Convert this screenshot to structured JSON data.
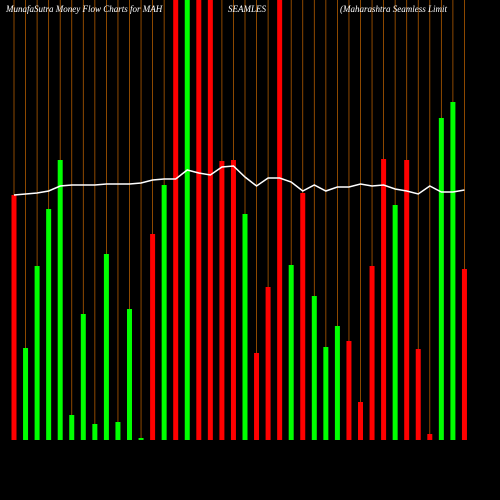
{
  "chart_data": {
    "type": "bar",
    "title_parts": [
      "MunafaSutra  Money Flow  Charts for MAH",
      "SEAMLES",
      "(Maharashtra  Seamless Limit"
    ],
    "categories": [
      null,
      null,
      null,
      null,
      null,
      null,
      null,
      null,
      null,
      null,
      null,
      null,
      null,
      null,
      null,
      null,
      null,
      null,
      null,
      null,
      null,
      null,
      null,
      null,
      null,
      null,
      null,
      null,
      null,
      null,
      null,
      null,
      null,
      null,
      null,
      null,
      null,
      null,
      null,
      null
    ],
    "bar_values": [
      245,
      92,
      174,
      231,
      280,
      25,
      126,
      16,
      186,
      18,
      131,
      2,
      206,
      255,
      440,
      440,
      440,
      440,
      279,
      280,
      226,
      87,
      153,
      440,
      175,
      247,
      144,
      93,
      114,
      99,
      38,
      174,
      281,
      235,
      280,
      91,
      6,
      322,
      338,
      171
    ],
    "bar_colors": [
      "#ff0000",
      "#00ff00",
      "#00ff00",
      "#00ff00",
      "#00ff00",
      "#00ff00",
      "#00ff00",
      "#00ff00",
      "#00ff00",
      "#00ff00",
      "#00ff00",
      "#00ff00",
      "#ff0000",
      "#00ff00",
      "#ff0000",
      "#00ff00",
      "#ff0000",
      "#ff0000",
      "#ff0000",
      "#ff0000",
      "#00ff00",
      "#ff0000",
      "#ff0000",
      "#ff0000",
      "#00ff00",
      "#ff0000",
      "#00ff00",
      "#00ff00",
      "#00ff00",
      "#ff0000",
      "#ff0000",
      "#ff0000",
      "#ff0000",
      "#00ff00",
      "#ff0000",
      "#ff0000",
      "#ff0000",
      "#00ff00",
      "#00ff00",
      "#ff0000"
    ],
    "line_values": [
      245,
      246,
      247,
      249,
      254,
      255,
      255,
      255,
      256,
      256,
      256,
      257,
      260,
      261,
      261,
      270,
      267,
      265,
      273,
      274,
      263,
      254,
      262,
      262,
      258,
      249,
      255,
      249,
      253,
      253,
      256,
      254,
      255,
      251,
      249,
      246,
      254,
      248,
      248,
      250
    ],
    "line_color": "#ffffff",
    "grid_color": "#b05a00",
    "ylim": [
      0,
      440
    ]
  }
}
